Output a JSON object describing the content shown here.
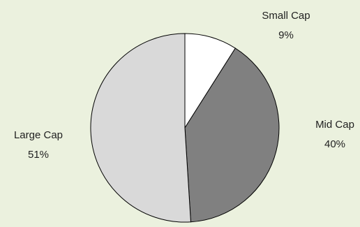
{
  "chart_data": {
    "type": "pie",
    "slices": [
      {
        "label": "Small Cap",
        "value": 9,
        "value_label": "9%",
        "color": "#ffffff"
      },
      {
        "label": "Mid Cap",
        "value": 40,
        "value_label": "40%",
        "color": "#808080"
      },
      {
        "label": "Large Cap",
        "value": 51,
        "value_label": "51%",
        "color": "#d9d9d9"
      }
    ],
    "start_angle_deg": 0,
    "direction": "clockwise",
    "background": "#ebf1de",
    "stroke": "#000000",
    "legend": "none",
    "data_labels": "outside"
  }
}
